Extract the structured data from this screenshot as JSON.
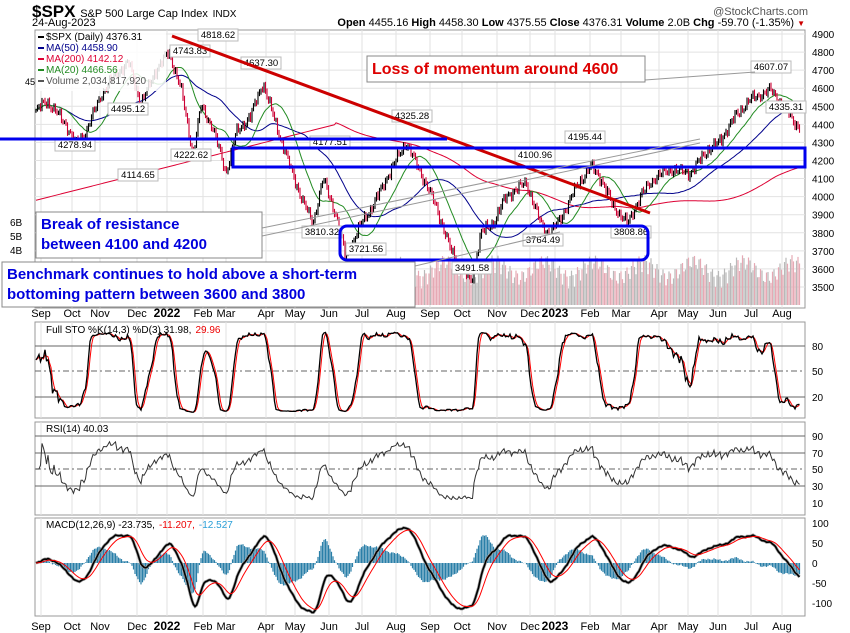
{
  "header": {
    "symbol": "$SPX",
    "name": "S&P 500 Large Cap Index",
    "exchange": "INDX",
    "date": "24-Aug-2023",
    "brand": "@StockCharts.com",
    "quote": [
      {
        "k": "Open",
        "v": "4455.16"
      },
      {
        "k": "High",
        "v": "4458.30"
      },
      {
        "k": "Low",
        "v": "4375.55"
      },
      {
        "k": "Close",
        "v": "4376.31"
      },
      {
        "k": "Volume",
        "v": "2.0B"
      },
      {
        "k": "Chg",
        "v": "-59.70 (-1.35%)"
      }
    ]
  },
  "legend": {
    "price": "$SPX (Daily) 4376.31",
    "ma50": "MA(50) 4458.90",
    "ma200": "MA(200) 4142.12",
    "ma20": "MA(20) 4466.56",
    "volume": "Volume 2,034,817,920",
    "partial": "45"
  },
  "colors": {
    "ma50": "#00008b",
    "ma200": "#dd0033",
    "ma20": "#228b22",
    "up": "#000000",
    "down": "#cc0033",
    "annotation_red": "#cc0000",
    "annotation_blue": "#0000ee",
    "macd_hist": "#2a7fa8",
    "signal": "#ff0000"
  },
  "annotations": {
    "momentum": "Loss of momentum around 4600",
    "resistance": "Break of resistance between 4100 and 4200",
    "benchmark": "Benchmark continues to hold above a short-term bottoming pattern between 3600 and 3800"
  },
  "indicators": {
    "sto_label": "Full STO %K(14,3) %D(3) 31.98,",
    "sto_d": "29.96",
    "rsi_label": "RSI(14) 40.03",
    "macd_label": "MACD(12,26,9) -23.735,",
    "macd_signal": "-11.207,",
    "macd_hist": "-12.527"
  },
  "chart_data": {
    "type": "candlestick",
    "title": "$SPX S&P 500 Large Cap Index (Daily)",
    "ylim": [
      3450,
      4950
    ],
    "y_ticks": [
      "4900",
      "4800",
      "4700",
      "4600",
      "4500",
      "4400",
      "4300",
      "4200",
      "4100",
      "4000",
      "3900",
      "3800",
      "3700",
      "3600",
      "3500"
    ],
    "volume_ticks": [
      "6B",
      "5B",
      "4B"
    ],
    "x_ticks": [
      "Sep",
      "Oct",
      "Nov",
      "Dec",
      "2022",
      "Feb",
      "Mar",
      "Apr",
      "May",
      "Jun",
      "Jul",
      "Aug",
      "Sep",
      "Oct",
      "Nov",
      "Dec",
      "2023",
      "Feb",
      "Mar",
      "Apr",
      "May",
      "Jun",
      "Jul",
      "Aug"
    ],
    "price_labels": [
      "4818.62",
      "4743.83",
      "4495.12",
      "4278.94",
      "4222.62",
      "4114.65",
      "4637.30",
      "4325.28",
      "4177.51",
      "3810.32",
      "3721.56",
      "3491.58",
      "4100.96",
      "3764.49",
      "4195.44",
      "3808.86",
      "4607.07",
      "4335.31"
    ],
    "key_points": [
      [
        0,
        4470
      ],
      [
        10,
        4530
      ],
      [
        20,
        4470
      ],
      [
        30,
        4400
      ],
      [
        40,
        4290
      ],
      [
        50,
        4360
      ],
      [
        65,
        4560
      ],
      [
        80,
        4680
      ],
      [
        93,
        4740
      ],
      [
        105,
        4510
      ],
      [
        120,
        4700
      ],
      [
        133,
        4800
      ],
      [
        145,
        4600
      ],
      [
        157,
        4230
      ],
      [
        165,
        4500
      ],
      [
        177,
        4380
      ],
      [
        190,
        4130
      ],
      [
        200,
        4350
      ],
      [
        215,
        4450
      ],
      [
        227,
        4630
      ],
      [
        240,
        4400
      ],
      [
        255,
        4150
      ],
      [
        265,
        4000
      ],
      [
        277,
        3850
      ],
      [
        287,
        4100
      ],
      [
        300,
        3900
      ],
      [
        310,
        3660
      ],
      [
        325,
        3850
      ],
      [
        337,
        3950
      ],
      [
        355,
        4150
      ],
      [
        370,
        4300
      ],
      [
        385,
        4130
      ],
      [
        400,
        3950
      ],
      [
        415,
        3700
      ],
      [
        427,
        3600
      ],
      [
        435,
        3520
      ],
      [
        445,
        3800
      ],
      [
        457,
        3850
      ],
      [
        470,
        4000
      ],
      [
        483,
        4050
      ],
      [
        490,
        4080
      ],
      [
        505,
        3850
      ],
      [
        513,
        3790
      ],
      [
        525,
        3880
      ],
      [
        540,
        4050
      ],
      [
        555,
        4170
      ],
      [
        565,
        4100
      ],
      [
        577,
        3950
      ],
      [
        592,
        3850
      ],
      [
        605,
        4010
      ],
      [
        620,
        4110
      ],
      [
        635,
        4150
      ],
      [
        655,
        4130
      ],
      [
        670,
        4250
      ],
      [
        683,
        4300
      ],
      [
        700,
        4450
      ],
      [
        715,
        4540
      ],
      [
        735,
        4590
      ],
      [
        748,
        4500
      ],
      [
        760,
        4400
      ],
      [
        765,
        4376
      ]
    ],
    "sto": {
      "ticks": [
        "80",
        "50",
        "20"
      ],
      "k": 31.98,
      "d": 29.96
    },
    "rsi": {
      "ticks": [
        "90",
        "70",
        "50",
        "30",
        "10"
      ],
      "value": 40.03
    },
    "macd": {
      "ticks": [
        "100",
        "50",
        "0",
        "-50",
        "-100"
      ],
      "macd": -23.735,
      "signal": -11.207,
      "hist": -12.527
    }
  }
}
